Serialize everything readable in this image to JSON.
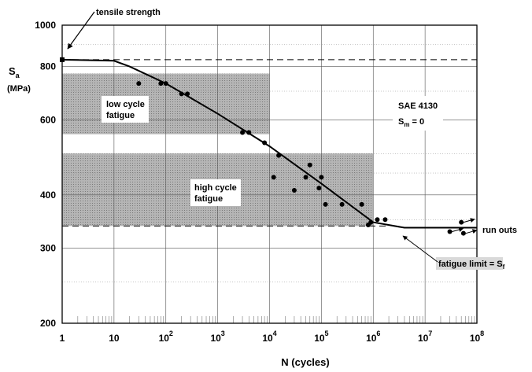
{
  "chart_data": {
    "type": "scatter",
    "xlabel": "N (cycles)",
    "ylabel": "S",
    "ylabel_sub": "a",
    "ylabel_unit": "(MPa)",
    "x_scale": "log",
    "y_scale": "log",
    "xlim": [
      1,
      100000000
    ],
    "ylim": [
      200,
      1000
    ],
    "grid": true,
    "x_ticks": [
      {
        "base": "1",
        "exp": ""
      },
      {
        "base": "10",
        "exp": ""
      },
      {
        "base": "10",
        "exp": "2"
      },
      {
        "base": "10",
        "exp": "3"
      },
      {
        "base": "10",
        "exp": "4"
      },
      {
        "base": "10",
        "exp": "5"
      },
      {
        "base": "10",
        "exp": "6"
      },
      {
        "base": "10",
        "exp": "7"
      },
      {
        "base": "10",
        "exp": "8"
      }
    ],
    "y_ticks": [
      {
        "value": 200,
        "label": "200"
      },
      {
        "value": 300,
        "label": "300"
      },
      {
        "value": 400,
        "label": "400"
      },
      {
        "value": 600,
        "label": "600"
      },
      {
        "value": 800,
        "label": "800"
      },
      {
        "value": 1000,
        "label": "1000"
      }
    ],
    "regions": [
      {
        "label_line1": "low cycle",
        "label_line2": "fatigue",
        "x": [
          1,
          10000
        ],
        "y": [
          555,
          770
        ]
      },
      {
        "label_line1": "high cycle",
        "label_line2": "fatigue",
        "x": [
          1,
          1000000
        ],
        "y": [
          338,
          500
        ]
      }
    ],
    "curve": [
      [
        1,
        830
      ],
      [
        10,
        825
      ],
      [
        20,
        800
      ],
      [
        100,
        730
      ],
      [
        1000,
        620
      ],
      [
        10000,
        520
      ],
      [
        100000,
        425
      ],
      [
        1000000,
        345
      ],
      [
        4000000,
        335
      ],
      [
        100000000,
        335
      ]
    ],
    "reference_lines": [
      {
        "name": "tensile strength",
        "value": 830
      },
      {
        "name": "fatigue limit",
        "value": 338
      }
    ],
    "points": [
      {
        "x": 30,
        "y": 730
      },
      {
        "x": 80,
        "y": 730
      },
      {
        "x": 100,
        "y": 730
      },
      {
        "x": 200,
        "y": 690
      },
      {
        "x": 260,
        "y": 690
      },
      {
        "x": 3000,
        "y": 560
      },
      {
        "x": 4000,
        "y": 560
      },
      {
        "x": 8000,
        "y": 530
      },
      {
        "x": 12000,
        "y": 440
      },
      {
        "x": 15000,
        "y": 495
      },
      {
        "x": 30000,
        "y": 410
      },
      {
        "x": 50000,
        "y": 440
      },
      {
        "x": 60000,
        "y": 470
      },
      {
        "x": 90000,
        "y": 415
      },
      {
        "x": 100000,
        "y": 440
      },
      {
        "x": 120000,
        "y": 380
      },
      {
        "x": 250000,
        "y": 380
      },
      {
        "x": 600000,
        "y": 380
      },
      {
        "x": 800000,
        "y": 340
      },
      {
        "x": 900000,
        "y": 345
      },
      {
        "x": 1200000,
        "y": 350
      },
      {
        "x": 1700000,
        "y": 350
      }
    ],
    "run_outs": [
      {
        "x": 30000000,
        "y": 328
      },
      {
        "x": 50000000,
        "y": 345
      },
      {
        "x": 55000000,
        "y": 325
      }
    ],
    "annotations": {
      "tensile_strength": "tensile strength",
      "run_outs": "run outs",
      "fatigue_limit": "fatigue limit = S",
      "fatigue_limit_sub": "f",
      "material": "SAE 4130",
      "mean_stress": "S",
      "mean_stress_sub": "m",
      "mean_stress_value": "= 0"
    }
  }
}
